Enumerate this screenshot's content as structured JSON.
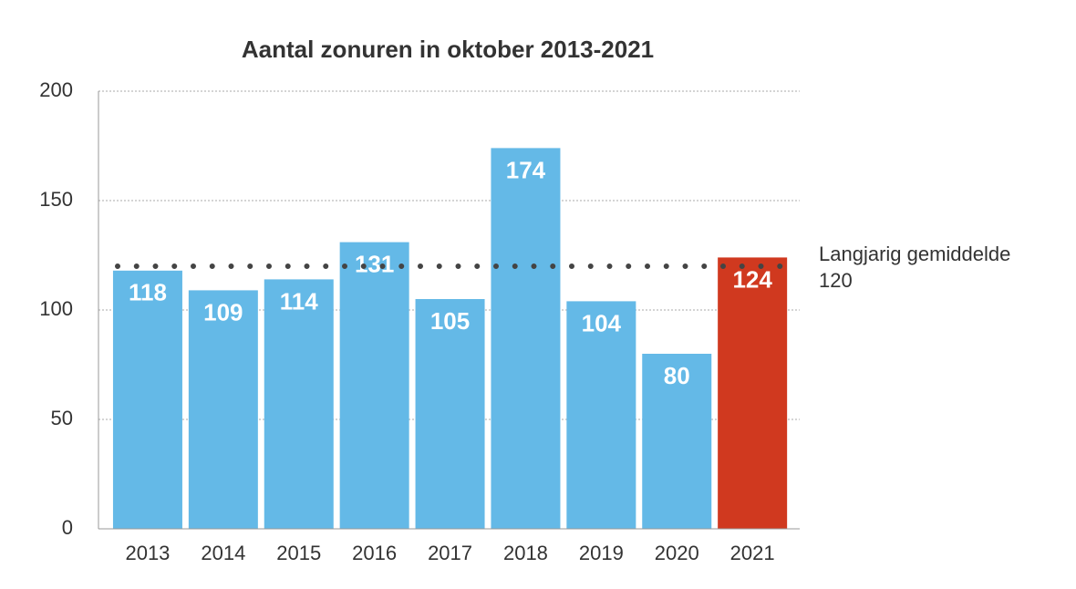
{
  "chart_data": {
    "type": "bar",
    "title": "Aantal zonuren in oktober 2013-2021",
    "categories": [
      "2013",
      "2014",
      "2015",
      "2016",
      "2017",
      "2018",
      "2019",
      "2020",
      "2021"
    ],
    "values": [
      118,
      109,
      114,
      131,
      105,
      174,
      104,
      80,
      124
    ],
    "colors": [
      "#64b9e7",
      "#64b9e7",
      "#64b9e7",
      "#64b9e7",
      "#64b9e7",
      "#64b9e7",
      "#64b9e7",
      "#64b9e7",
      "#d0391f"
    ],
    "ylim": [
      0,
      200
    ],
    "yticks": [
      0,
      50,
      100,
      150,
      200
    ],
    "grid": true,
    "reference_line": {
      "label": "Langjarig gemiddelde",
      "value": 120
    }
  }
}
